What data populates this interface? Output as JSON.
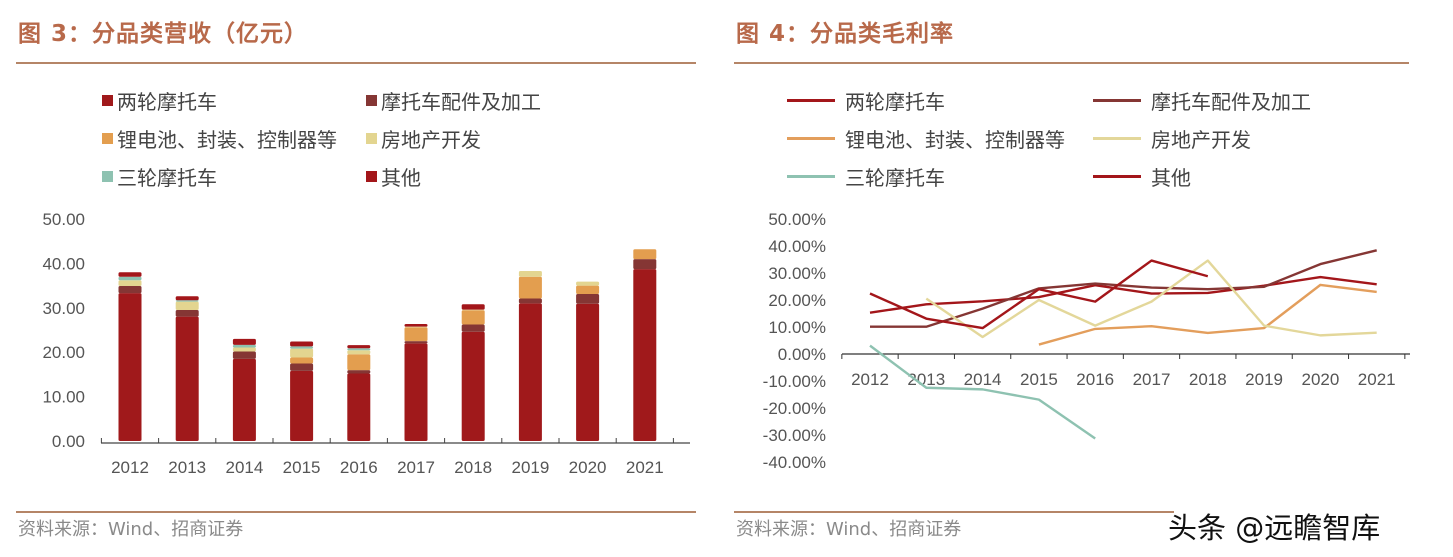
{
  "left": {
    "title": "图 3：分品类营收（亿元）",
    "source": "资料来源：Wind、招商证券"
  },
  "right": {
    "title": "图 4：分品类毛利率",
    "source": "资料来源：Wind、招商证券"
  },
  "watermark": "头条 @远瞻智库",
  "chart_data": [
    {
      "type": "bar",
      "stacked": true,
      "title": "图 3：分品类营收（亿元）",
      "categories": [
        "2012",
        "2013",
        "2014",
        "2015",
        "2016",
        "2017",
        "2018",
        "2019",
        "2020",
        "2021"
      ],
      "ylim": [
        0,
        50
      ],
      "yticks": [
        "0.00",
        "10.00",
        "20.00",
        "30.00",
        "40.00",
        "50.00"
      ],
      "grid": false,
      "legend": "top",
      "series": [
        {
          "name": "两轮摩托车",
          "color": "#A0191B",
          "values": [
            33.3,
            28.0,
            18.5,
            15.8,
            15.2,
            22.0,
            24.6,
            31.0,
            30.9,
            38.7
          ]
        },
        {
          "name": "摩托车配件及加工",
          "color": "#853634",
          "values": [
            1.6,
            1.5,
            1.65,
            1.65,
            0.75,
            0.5,
            1.65,
            1.1,
            2.2,
            2.25
          ]
        },
        {
          "name": "锂电池、封装、控制器等",
          "color": "#E39E4F",
          "values": [
            0,
            0,
            0,
            1.35,
            3.6,
            3.1,
            3.2,
            4.9,
            1.9,
            2.25
          ]
        },
        {
          "name": "房地产开发",
          "color": "#E3D590",
          "values": [
            1.3,
            1.9,
            0.9,
            2.0,
            0.9,
            0.15,
            0.15,
            1.3,
            0.9,
            0
          ]
        },
        {
          "name": "三轮摩托车",
          "color": "#8EC2B1",
          "values": [
            0.8,
            0.3,
            0.6,
            0.5,
            0.45,
            0,
            0,
            0,
            0,
            0
          ]
        },
        {
          "name": "其他",
          "color": "#A3161A",
          "values": [
            1.0,
            0.9,
            1.35,
            1.1,
            0.7,
            0.6,
            1.2,
            0,
            0,
            0
          ]
        }
      ]
    },
    {
      "type": "line",
      "title": "图 4：分品类毛利率",
      "categories": [
        "2012",
        "2013",
        "2014",
        "2015",
        "2016",
        "2017",
        "2018",
        "2019",
        "2020",
        "2021"
      ],
      "ylim": [
        -40,
        50
      ],
      "yticks": [
        "-40.00%",
        "-30.00%",
        "-20.00%",
        "-10.00%",
        "0.00%",
        "10.00%",
        "20.00%",
        "30.00%",
        "40.00%",
        "50.00%"
      ],
      "grid": false,
      "legend": "top",
      "series": [
        {
          "name": "两轮摩托车",
          "color": "#A3161A",
          "values": [
            15.3,
            18.4,
            19.5,
            21.1,
            25.5,
            22.4,
            22.6,
            25.3,
            28.5,
            25.8
          ]
        },
        {
          "name": "摩托车配件及加工",
          "color": "#853634",
          "values": [
            10.1,
            10.1,
            16.8,
            24.3,
            26.1,
            24.6,
            24.0,
            24.9,
            33.3,
            38.4
          ]
        },
        {
          "name": "锂电池、封装、控制器等",
          "color": "#E39E5C",
          "values": [
            null,
            null,
            null,
            3.5,
            9.3,
            10.3,
            7.8,
            9.6,
            25.6,
            23.0
          ]
        },
        {
          "name": "房地产开发",
          "color": "#E3D79A",
          "values": [
            null,
            20.5,
            6.3,
            20.0,
            10.5,
            19.4,
            34.6,
            10.5,
            6.9,
            7.9
          ]
        },
        {
          "name": "三轮摩托车",
          "color": "#8EC2B1",
          "values": [
            3.1,
            -12.5,
            -13.1,
            -16.9,
            -31.3,
            null,
            null,
            null,
            null,
            null
          ]
        },
        {
          "name": "其他",
          "color": "#A3161A",
          "values": [
            22.4,
            13.1,
            9.6,
            24.0,
            19.4,
            34.6,
            28.8,
            null,
            null,
            null
          ]
        }
      ]
    }
  ]
}
